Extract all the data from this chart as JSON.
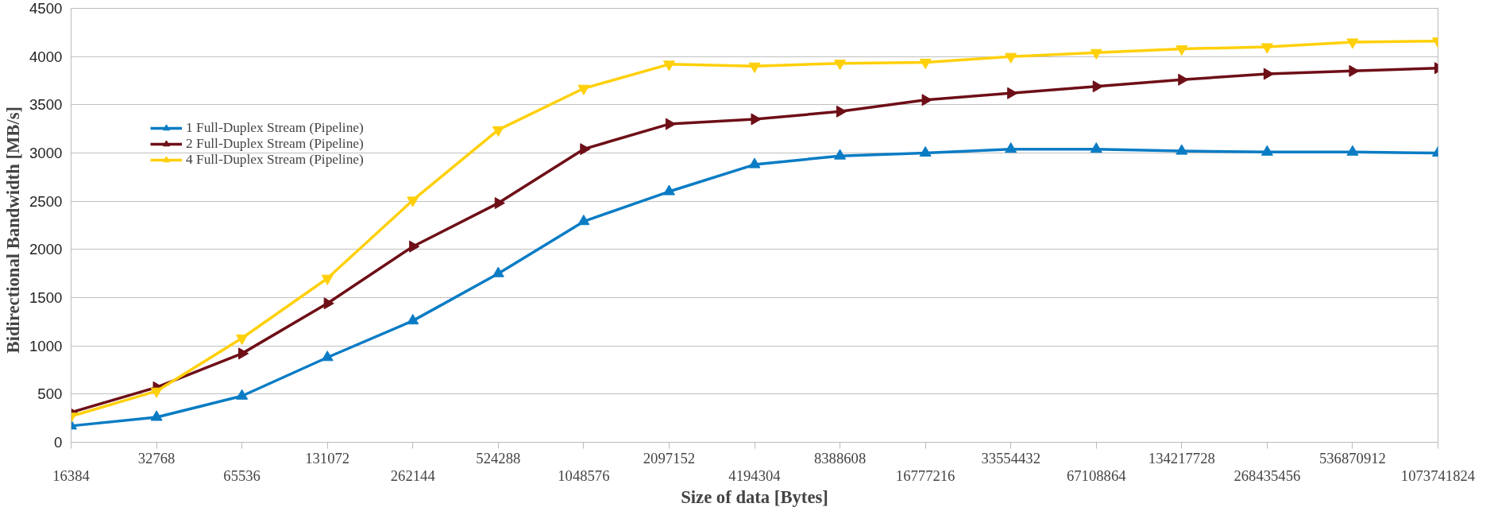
{
  "chart_data": {
    "type": "line",
    "xlabel": "Size of data [Bytes]",
    "ylabel": "Bidirectional  Bandwidth  [MB/s]",
    "categories": [
      "16384",
      "32768",
      "65536",
      "131072",
      "262144",
      "524288",
      "1048576",
      "2097152",
      "4194304",
      "8388608",
      "16777216",
      "33554432",
      "67108864",
      "134217728",
      "268435456",
      "536870912",
      "1073741824"
    ],
    "series": [
      {
        "name": "1 Full-Duplex Stream (Pipeline)",
        "color": "#0a7cc4",
        "values": [
          170,
          260,
          480,
          880,
          1260,
          1750,
          2290,
          2600,
          2880,
          2970,
          3000,
          3040,
          3040,
          3020,
          3010,
          3010,
          3000
        ]
      },
      {
        "name": "2 Full-Duplex Stream (Pipeline)",
        "color": "#6e0f17",
        "values": [
          310,
          570,
          920,
          1440,
          2030,
          2480,
          3040,
          3300,
          3350,
          3430,
          3550,
          3620,
          3690,
          3760,
          3820,
          3850,
          3880
        ]
      },
      {
        "name": "4 Full-Duplex Stream (Pipeline)",
        "color": "#ffd00a",
        "values": [
          270,
          530,
          1080,
          1700,
          2510,
          3240,
          3670,
          3920,
          3900,
          3930,
          3940,
          4000,
          4040,
          4080,
          4100,
          4150,
          4160
        ]
      }
    ],
    "ylim": [
      0,
      4500
    ],
    "yticks": [
      0,
      500,
      1000,
      1500,
      2000,
      2500,
      3000,
      3500,
      4000,
      4500
    ],
    "grid": "y",
    "legend": "top left",
    "marker": "triangle",
    "line_style": "solid"
  }
}
